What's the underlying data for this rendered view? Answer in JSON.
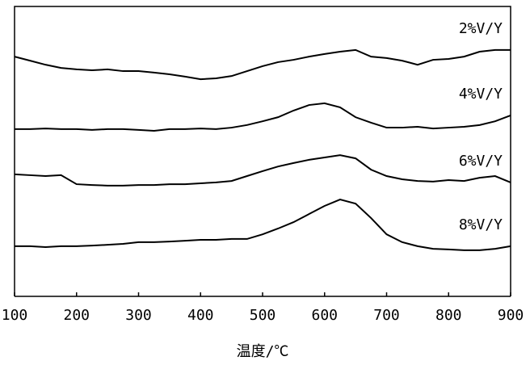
{
  "chart_data": {
    "type": "line",
    "x_label": "温度/℃",
    "x": [
      100,
      125,
      150,
      175,
      200,
      225,
      250,
      275,
      300,
      325,
      350,
      375,
      400,
      425,
      450,
      475,
      500,
      525,
      550,
      575,
      600,
      625,
      650,
      675,
      700,
      725,
      750,
      775,
      800,
      825,
      850,
      875,
      900
    ],
    "xlim": [
      100,
      900
    ],
    "xticks": [
      100,
      200,
      300,
      400,
      500,
      600,
      700,
      800,
      900
    ],
    "ylim": [
      0,
      100
    ],
    "series": [
      {
        "name": "2%V/Y",
        "color": "#000000",
        "values": [
          82.7,
          81.3,
          79.9,
          78.8,
          78.3,
          78.0,
          78.3,
          77.7,
          77.7,
          77.2,
          76.6,
          75.8,
          74.9,
          75.2,
          76.0,
          77.7,
          79.4,
          80.8,
          81.6,
          82.7,
          83.6,
          84.4,
          85.0,
          82.7,
          82.2,
          81.3,
          79.9,
          81.6,
          81.9,
          82.7,
          84.4,
          85.0,
          85.0
        ]
      },
      {
        "name": "4%V/Y",
        "color": "#000000",
        "values": [
          57.7,
          57.7,
          57.9,
          57.7,
          57.7,
          57.4,
          57.7,
          57.7,
          57.4,
          57.1,
          57.7,
          57.7,
          57.9,
          57.7,
          58.2,
          59.1,
          60.4,
          61.8,
          64.1,
          66.0,
          66.6,
          65.2,
          61.8,
          59.9,
          58.2,
          58.2,
          58.5,
          57.9,
          58.2,
          58.5,
          59.1,
          60.4,
          62.4
        ]
      },
      {
        "name": "6%V/Y",
        "color": "#000000",
        "values": [
          42.1,
          41.8,
          41.5,
          41.8,
          38.7,
          38.4,
          38.2,
          38.2,
          38.4,
          38.4,
          38.7,
          38.7,
          39.0,
          39.3,
          39.8,
          41.5,
          43.2,
          44.8,
          46.0,
          47.1,
          47.9,
          48.7,
          47.6,
          43.7,
          41.5,
          40.4,
          39.8,
          39.6,
          40.1,
          39.8,
          40.9,
          41.5,
          39.3
        ]
      },
      {
        "name": "8%V/Y",
        "color": "#000000",
        "values": [
          17.3,
          17.3,
          17.0,
          17.3,
          17.3,
          17.5,
          17.8,
          18.1,
          18.7,
          18.7,
          18.9,
          19.2,
          19.5,
          19.5,
          19.8,
          19.8,
          21.4,
          23.4,
          25.6,
          28.4,
          31.2,
          33.4,
          32.0,
          27.0,
          21.4,
          18.7,
          17.3,
          16.4,
          16.2,
          15.9,
          15.9,
          16.4,
          17.3
        ]
      }
    ]
  }
}
